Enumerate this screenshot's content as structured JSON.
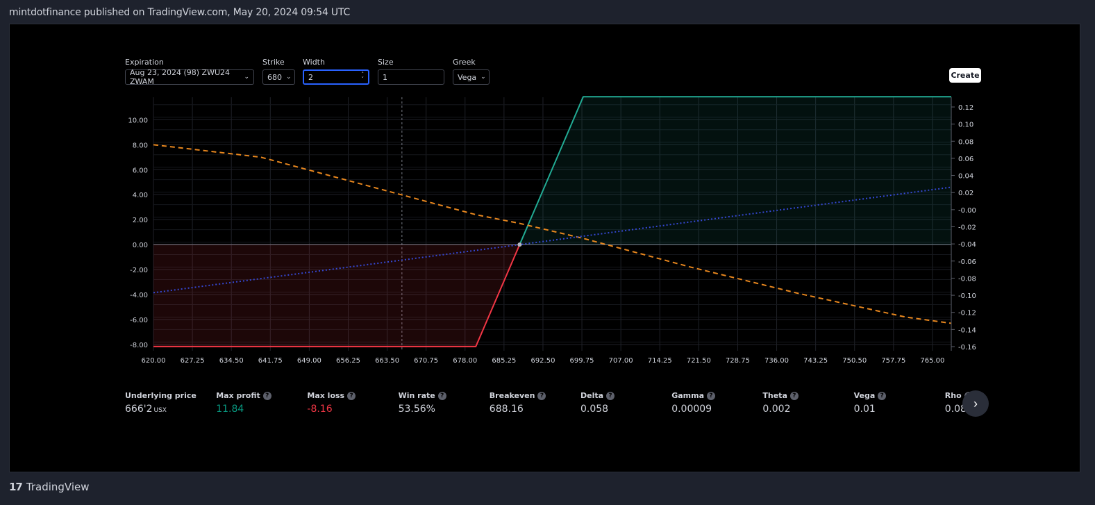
{
  "publication": {
    "text": "mintdotfinance published on TradingView.com, May 20, 2024 09:54 UTC"
  },
  "footer": {
    "logo": "17",
    "brand": "TradingView"
  },
  "controls": {
    "expiration": {
      "label": "Expiration",
      "value": "Aug 23, 2024 (98) ZWU24 ZWAM"
    },
    "strike": {
      "label": "Strike",
      "value": "680"
    },
    "width": {
      "label": "Width",
      "value": "2"
    },
    "size": {
      "label": "Size",
      "value": "1"
    },
    "greek": {
      "label": "Greek",
      "value": "Vega"
    },
    "create_label": "Create"
  },
  "stats": [
    {
      "label": "Underlying price",
      "value": "666'2",
      "unit": "USX",
      "help": false,
      "color": "#d1d4dc"
    },
    {
      "label": "Max profit",
      "value": "11.84",
      "unit": "",
      "help": true,
      "color": "#089981"
    },
    {
      "label": "Max loss",
      "value": "-8.16",
      "unit": "",
      "help": true,
      "color": "#f23645"
    },
    {
      "label": "Win rate",
      "value": "53.56%",
      "unit": "",
      "help": true,
      "color": "#d1d4dc"
    },
    {
      "label": "Breakeven",
      "value": "688.16",
      "unit": "",
      "help": true,
      "color": "#d1d4dc"
    },
    {
      "label": "Delta",
      "value": "0.058",
      "unit": "",
      "help": true,
      "color": "#d1d4dc"
    },
    {
      "label": "Gamma",
      "value": "0.00009",
      "unit": "",
      "help": true,
      "color": "#d1d4dc"
    },
    {
      "label": "Theta",
      "value": "0.002",
      "unit": "",
      "help": true,
      "color": "#d1d4dc"
    },
    {
      "label": "Vega",
      "value": "0.01",
      "unit": "",
      "help": true,
      "color": "#d1d4dc"
    },
    {
      "label": "Rho",
      "value": "0.08",
      "unit": "",
      "help": true,
      "color": "#d1d4dc"
    }
  ],
  "chart_data": {
    "type": "line",
    "x_ticks": [
      "620.00",
      "627.25",
      "634.50",
      "641.75",
      "649.00",
      "656.25",
      "663.50",
      "670.75",
      "678.00",
      "685.25",
      "692.50",
      "699.75",
      "707.00",
      "714.25",
      "721.50",
      "728.75",
      "736.00",
      "743.25",
      "750.50",
      "757.75",
      "765.00"
    ],
    "y_left_ticks": [
      "10.00",
      "8.00",
      "6.00",
      "4.00",
      "2.00",
      "0.00",
      "-2.00",
      "-4.00",
      "-6.00",
      "-8.00"
    ],
    "y_right_ticks": [
      "0.12",
      "0.10",
      "0.08",
      "0.06",
      "0.04",
      "0.02",
      "-0.00",
      "-0.02",
      "-0.04",
      "-0.06",
      "-0.08",
      "-0.10",
      "-0.12",
      "-0.14",
      "-0.16"
    ],
    "xlim": [
      620,
      768.5
    ],
    "ylim_left": [
      -8.5,
      11.8
    ],
    "ylim_right": [
      -0.16,
      0.12
    ],
    "underlying_price": 666.25,
    "breakeven": 688.16,
    "series": [
      {
        "points": [
          [
            620,
            -8.16
          ],
          [
            680,
            -8.16
          ],
          [
            688.16,
            0
          ],
          [
            700,
            11.84
          ],
          [
            768.5,
            11.84
          ]
        ],
        "colors": {
          "loss": "#f23645",
          "profit": "#22ab94"
        }
      },
      {
        "points": [
          [
            620,
            8.0
          ],
          [
            640,
            7.0
          ],
          [
            660,
            4.7
          ],
          [
            680,
            2.4
          ],
          [
            688.16,
            1.7
          ],
          [
            700,
            0.5
          ],
          [
            720,
            -1.8
          ],
          [
            740,
            -3.9
          ],
          [
            760,
            -5.8
          ],
          [
            768.5,
            -6.3
          ]
        ],
        "color": "#e8871e"
      },
      {
        "points": [
          [
            620,
            -3.85
          ],
          [
            688.16,
            0
          ],
          [
            768.5,
            4.6
          ]
        ],
        "color": "#3548d4"
      }
    ]
  },
  "icons": {
    "next": "chevron-right-icon",
    "help": "question-circle-icon"
  }
}
